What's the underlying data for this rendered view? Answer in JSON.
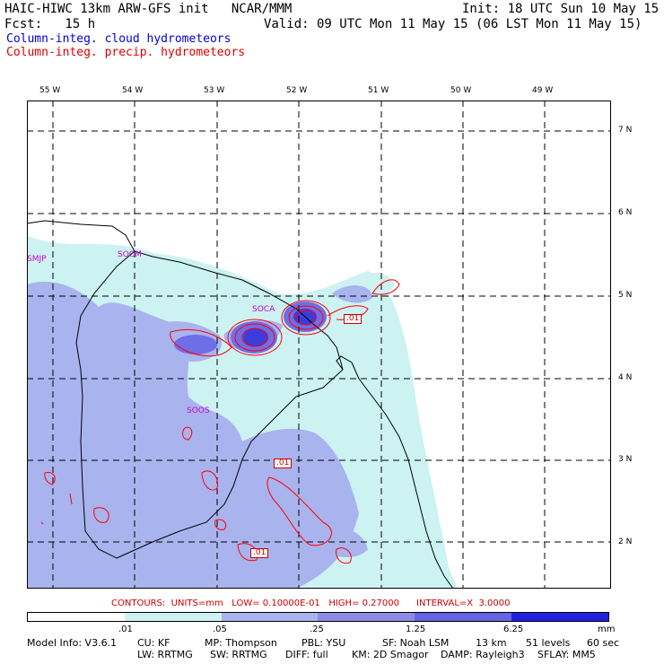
{
  "header": {
    "line1_left": "HAIC-HIWC 13km ARW-GFS init   NCAR/MMM",
    "line1_right": "Init: 18 UTC Sun 10 May 15",
    "line2_left": "Fcst:   15 h",
    "line2_right": "Valid: 09 UTC Mon 11 May 15 (06 LST Mon 11 May 15)",
    "legend_cloud": "Column-integ. cloud hydrometeors",
    "legend_precip": "Column-integ. precip. hydrometeors"
  },
  "map": {
    "lon_labels": [
      "55 W",
      "54 W",
      "53 W",
      "52 W",
      "51 W",
      "50 W",
      "49 W"
    ],
    "lat_labels": [
      "7 N",
      "6 N",
      "5 N",
      "4 N",
      "3 N",
      "2 N"
    ],
    "sites": [
      "SMJP",
      "SOCM",
      "SOCA",
      "SOOS"
    ],
    "contour_labels": [
      ".01",
      ".01",
      ".01"
    ],
    "colors": {
      "cloud_lightest": "#ccf2f2",
      "cloud_light": "#a9b3ee",
      "cloud_mid": "#7373e6",
      "cloud_dark": "#4646dc",
      "precip_contour": "#ff0000",
      "coastline": "#000000"
    }
  },
  "contours_info": "CONTOURS:  UNITS=mm   LOW= 0.10000E-01   HIGH= 0.27000      INTERVAL=X  3.0000",
  "colorbar": {
    "colors": [
      "#ffffff",
      "#ccf2f2",
      "#a9b3ee",
      "#8c8ce8",
      "#6464e4",
      "#2020e0"
    ],
    "labels": [
      ".01",
      ".05",
      ".25",
      "1.25",
      "6.25",
      "mm"
    ]
  },
  "footer": {
    "model_info": "Model Info: V3.6.1",
    "cu": "CU: KF",
    "mp": "MP: Thompson",
    "pbl": "PBL: YSU",
    "sf": "SF: Noah LSM",
    "res": "13 km",
    "levels": "51 levels",
    "dt": "60 sec",
    "lw": "LW: RRTMG",
    "sw": "SW: RRTMG",
    "diff": "DIFF: full",
    "km": "KM: 2D Smagor",
    "damp": "DAMP: Rayleigh3",
    "sflay": "SFLAY: MM5"
  }
}
